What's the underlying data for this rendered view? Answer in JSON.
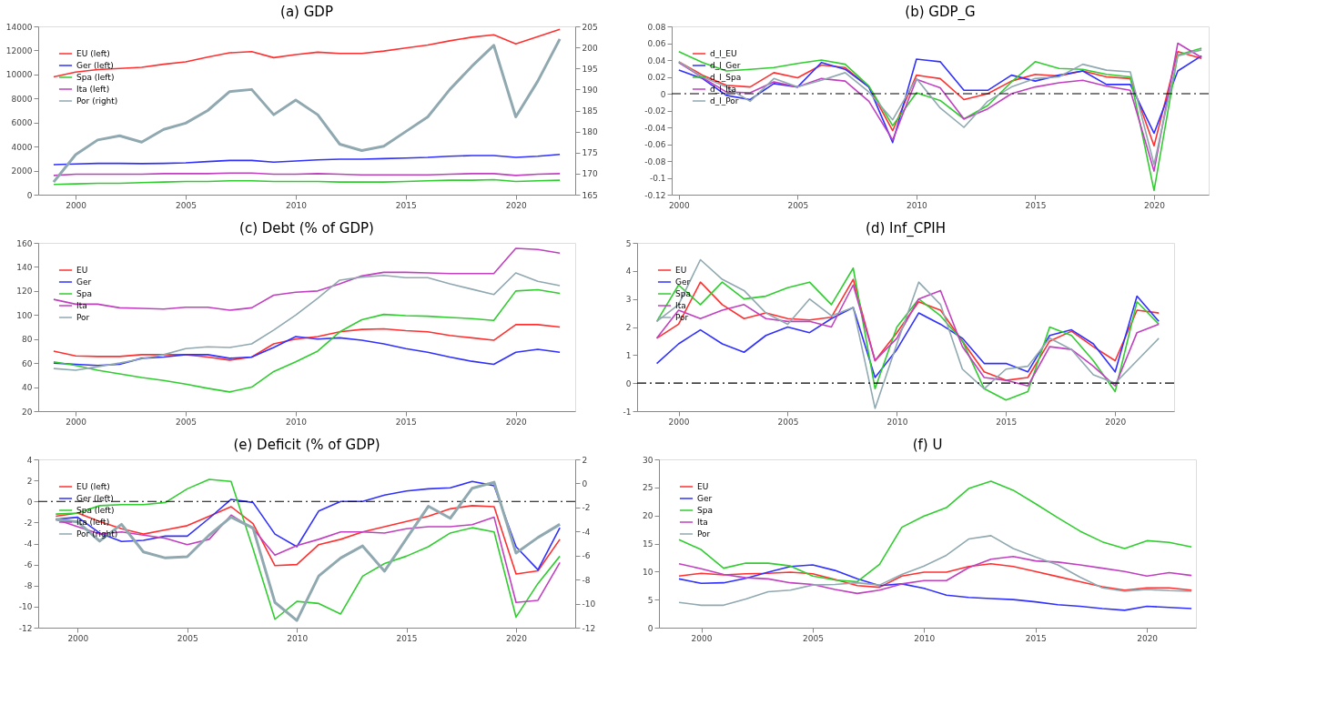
{
  "chart_data": [
    {
      "type": "line",
      "title": "(a) GDP",
      "x": [
        1999,
        2000,
        2001,
        2002,
        2003,
        2004,
        2005,
        2006,
        2007,
        2008,
        2009,
        2010,
        2011,
        2012,
        2013,
        2014,
        2015,
        2016,
        2017,
        2018,
        2019,
        2020,
        2021,
        2022
      ],
      "xlim": [
        1998.3,
        2022.7
      ],
      "xticks": [
        2000,
        2005,
        2010,
        2015,
        2020
      ],
      "ylim": [
        0,
        14000
      ],
      "yticks": [
        0,
        2000,
        4000,
        6000,
        8000,
        10000,
        12000,
        14000
      ],
      "y2lim": [
        165,
        205
      ],
      "y2ticks": [
        165,
        170,
        175,
        180,
        185,
        190,
        195,
        200,
        205
      ],
      "legend": "top left",
      "grid": false,
      "marker": "none",
      "line_style": "solid",
      "series": [
        {
          "name": "EU (left)",
          "color": "#ff3030",
          "values": [
            9800,
            10200,
            10400,
            10500,
            10600,
            10850,
            11050,
            11450,
            11800,
            11900,
            11400,
            11650,
            11850,
            11750,
            11750,
            11950,
            12200,
            12450,
            12800,
            13100,
            13300,
            12550,
            13150,
            13750
          ]
        },
        {
          "name": "Ger (left)",
          "color": "#3030ff",
          "values": [
            2500,
            2550,
            2600,
            2600,
            2580,
            2600,
            2650,
            2750,
            2850,
            2850,
            2700,
            2800,
            2900,
            2950,
            2950,
            3000,
            3050,
            3100,
            3200,
            3250,
            3250,
            3100,
            3200,
            3350
          ]
        },
        {
          "name": "Spa (left)",
          "color": "#30cc30",
          "values": [
            850,
            900,
            950,
            950,
            1000,
            1050,
            1100,
            1100,
            1150,
            1150,
            1100,
            1100,
            1100,
            1050,
            1050,
            1050,
            1100,
            1150,
            1200,
            1200,
            1250,
            1100,
            1150,
            1200
          ]
        },
        {
          "name": "Ita (left)",
          "color": "#c040c0",
          "values": [
            1600,
            1700,
            1700,
            1700,
            1700,
            1750,
            1750,
            1750,
            1800,
            1800,
            1700,
            1700,
            1750,
            1700,
            1650,
            1650,
            1650,
            1650,
            1700,
            1750,
            1750,
            1600,
            1700,
            1750
          ]
        },
        {
          "name": "Por (right)",
          "color": "#90a8b0",
          "axis": "y2",
          "values": [
            168,
            174.5,
            178,
            179,
            177.5,
            180.5,
            182,
            185,
            189.5,
            190,
            184,
            187.5,
            184,
            177,
            175.5,
            176.5,
            180,
            183.5,
            190,
            195.5,
            200.5,
            183.5,
            192,
            202
          ]
        }
      ]
    },
    {
      "type": "line",
      "title": "(b) GDP_G",
      "x": [
        2000,
        2001,
        2002,
        2003,
        2004,
        2005,
        2006,
        2007,
        2008,
        2009,
        2010,
        2011,
        2012,
        2013,
        2014,
        2015,
        2016,
        2017,
        2018,
        2019,
        2020,
        2021,
        2022
      ],
      "xlim": [
        1999.7,
        2022.3
      ],
      "xticks": [
        2000,
        2005,
        2010,
        2015,
        2020
      ],
      "ylim": [
        -0.12,
        0.08
      ],
      "yticks": [
        -0.12,
        -0.1,
        -0.08,
        -0.06,
        -0.04,
        -0.02,
        0,
        0.02,
        0.04,
        0.06,
        0.08
      ],
      "legend": "top left",
      "grid": false,
      "marker": "none",
      "line_style": "solid",
      "ref_lines": [
        {
          "axis": "y",
          "value": 0,
          "color": "#000000",
          "line_style": "dashdot"
        }
      ],
      "series": [
        {
          "name": "d_l_EU",
          "color": "#ff3030",
          "values": [
            0.038,
            0.022,
            0.01,
            0.008,
            0.025,
            0.019,
            0.034,
            0.031,
            0.008,
            -0.044,
            0.022,
            0.018,
            -0.007,
            0,
            0.015,
            0.023,
            0.021,
            0.027,
            0.02,
            0.018,
            -0.062,
            0.05,
            0.042
          ]
        },
        {
          "name": "d_l_Ger",
          "color": "#3030ff",
          "values": [
            0.028,
            0.018,
            -0.002,
            -0.007,
            0.012,
            0.008,
            0.037,
            0.029,
            0.008,
            -0.058,
            0.041,
            0.038,
            0.004,
            0.004,
            0.022,
            0.015,
            0.022,
            0.027,
            0.011,
            0.011,
            -0.047,
            0.027,
            0.045
          ]
        },
        {
          "name": "d_l_Spa",
          "color": "#30cc30",
          "values": [
            0.05,
            0.037,
            0.027,
            0.029,
            0.031,
            0.036,
            0.04,
            0.035,
            0.009,
            -0.038,
            0.001,
            -0.008,
            -0.03,
            -0.014,
            0.014,
            0.038,
            0.03,
            0.029,
            0.023,
            0.02,
            -0.115,
            0.046,
            0.054
          ]
        },
        {
          "name": "d_l_Ita",
          "color": "#c040c0",
          "values": [
            0.037,
            0.019,
            0.002,
            0.001,
            0.014,
            0.008,
            0.018,
            0.015,
            -0.009,
            -0.055,
            0.017,
            0.007,
            -0.03,
            -0.018,
            0,
            0.008,
            0.013,
            0.016,
            0.009,
            0.004,
            -0.092,
            0.06,
            0.043
          ]
        },
        {
          "name": "d_l_Por",
          "color": "#90a8b0",
          "values": [
            0.038,
            0.02,
            0.008,
            -0.009,
            0.018,
            0.008,
            0.016,
            0.025,
            0.002,
            -0.031,
            0.018,
            -0.017,
            -0.04,
            -0.009,
            0.008,
            0.018,
            0.02,
            0.035,
            0.028,
            0.026,
            -0.084,
            0.045,
            0.052
          ]
        }
      ]
    },
    {
      "type": "line",
      "title": "(c) Debt (% of GDP)",
      "x": [
        1999,
        2000,
        2001,
        2002,
        2003,
        2004,
        2005,
        2006,
        2007,
        2008,
        2009,
        2010,
        2011,
        2012,
        2013,
        2014,
        2015,
        2016,
        2017,
        2018,
        2019,
        2020,
        2021,
        2022
      ],
      "xlim": [
        1998.3,
        2022.7
      ],
      "xticks": [
        2000,
        2005,
        2010,
        2015,
        2020
      ],
      "ylim": [
        20,
        160
      ],
      "yticks": [
        20,
        40,
        60,
        80,
        100,
        120,
        140,
        160
      ],
      "legend": "top left",
      "grid": false,
      "marker": "none",
      "line_style": "solid",
      "series": [
        {
          "name": "EU",
          "color": "#ff3030",
          "values": [
            70,
            66,
            65.5,
            65.5,
            67,
            67,
            67,
            65,
            62.5,
            65,
            76,
            80,
            82,
            86,
            88,
            88.5,
            87,
            86,
            83,
            81,
            79,
            92,
            92,
            90
          ]
        },
        {
          "name": "Ger",
          "color": "#3030ff",
          "values": [
            60,
            59,
            58,
            59,
            64,
            65,
            67,
            67,
            64,
            65,
            73,
            82,
            80,
            81,
            79,
            76,
            72,
            69,
            65,
            61.5,
            59,
            69,
            71.5,
            69
          ]
        },
        {
          "name": "Spa",
          "color": "#30cc30",
          "values": [
            61,
            58,
            54,
            51,
            48,
            45.5,
            42.5,
            39,
            36,
            40,
            53,
            61,
            70,
            86,
            96,
            100.5,
            99.5,
            99,
            98,
            97,
            95.5,
            120,
            121,
            118
          ]
        },
        {
          "name": "Ita",
          "color": "#c040c0",
          "values": [
            113,
            109,
            109,
            106,
            105.5,
            105,
            106.5,
            106.5,
            104,
            106,
            116.5,
            119,
            120,
            126,
            132.5,
            135.5,
            135.5,
            135,
            134.5,
            134.5,
            134.5,
            155.5,
            154.5,
            151.5
          ]
        },
        {
          "name": "Por",
          "color": "#90a8b0",
          "values": [
            55.5,
            54,
            57,
            60,
            63.5,
            67,
            72,
            73.5,
            73,
            76,
            87.5,
            100,
            114,
            129,
            131.5,
            133,
            131,
            131,
            126,
            121.5,
            117,
            135,
            128,
            124.5
          ]
        }
      ]
    },
    {
      "type": "line",
      "title": "(d) Inf_CPIH",
      "x": [
        1999,
        2000,
        2001,
        2002,
        2003,
        2004,
        2005,
        2006,
        2007,
        2008,
        2009,
        2010,
        2011,
        2012,
        2013,
        2014,
        2015,
        2016,
        2017,
        2018,
        2019,
        2020,
        2021,
        2022
      ],
      "xlim": [
        1998.1,
        2022.7
      ],
      "xticks": [
        2000,
        2005,
        2010,
        2015,
        2020
      ],
      "ylim": [
        -1,
        5
      ],
      "yticks": [
        -1,
        0,
        1,
        2,
        3,
        4,
        5
      ],
      "legend": "top left",
      "grid": false,
      "marker": "none",
      "line_style": "solid",
      "ref_lines": [
        {
          "axis": "y",
          "value": 0,
          "color": "#000000",
          "line_style": "dashdot"
        }
      ],
      "series": [
        {
          "name": "EU",
          "color": "#ff3030",
          "values": [
            1.6,
            2.1,
            3.6,
            2.8,
            2.3,
            2.5,
            2.3,
            2.25,
            2.35,
            3.7,
            0.8,
            1.8,
            2.9,
            2.6,
            1.5,
            0.4,
            0.1,
            0.2,
            1.5,
            1.85,
            1.3,
            0.8,
            2.6,
            2.5
          ]
        },
        {
          "name": "Ger",
          "color": "#3030ff",
          "values": [
            0.7,
            1.4,
            1.9,
            1.4,
            1.1,
            1.7,
            2.0,
            1.8,
            2.3,
            2.7,
            0.2,
            1.2,
            2.5,
            2.1,
            1.6,
            0.7,
            0.7,
            0.4,
            1.7,
            1.9,
            1.4,
            0.4,
            3.1,
            2.2
          ]
        },
        {
          "name": "Spa",
          "color": "#30cc30",
          "values": [
            2.2,
            3.5,
            2.8,
            3.6,
            3.0,
            3.1,
            3.4,
            3.6,
            2.8,
            4.1,
            -0.2,
            2.0,
            3.0,
            2.4,
            1.5,
            -0.2,
            -0.6,
            -0.3,
            2.0,
            1.7,
            0.8,
            -0.3,
            2.9,
            2.1
          ]
        },
        {
          "name": "Ita",
          "color": "#c040c0",
          "values": [
            1.6,
            2.6,
            2.3,
            2.6,
            2.8,
            2.3,
            2.2,
            2.2,
            2.0,
            3.5,
            0.8,
            1.6,
            3.0,
            3.3,
            1.3,
            0.2,
            0.1,
            -0.1,
            1.3,
            1.2,
            0.6,
            -0.1,
            1.8,
            2.1
          ]
        },
        {
          "name": "Por",
          "color": "#90a8b0",
          "values": [
            2.2,
            2.8,
            4.4,
            3.7,
            3.3,
            2.5,
            2.1,
            3.0,
            2.4,
            2.7,
            -0.9,
            1.4,
            3.6,
            2.8,
            0.5,
            -0.2,
            0.5,
            0.6,
            1.6,
            1.2,
            0.3,
            0.0,
            0.8,
            1.6
          ]
        }
      ]
    },
    {
      "type": "line",
      "title": "(e) Deficit (% of GDP)",
      "x": [
        1999,
        2000,
        2001,
        2002,
        2003,
        2004,
        2005,
        2006,
        2007,
        2008,
        2009,
        2010,
        2011,
        2012,
        2013,
        2014,
        2015,
        2016,
        2017,
        2018,
        2019,
        2020,
        2021,
        2022
      ],
      "xlim": [
        1998.2,
        2022.7
      ],
      "xticks": [
        2000,
        2005,
        2010,
        2015,
        2020
      ],
      "ylim": [
        -12,
        4
      ],
      "yticks": [
        -12,
        -10,
        -8,
        -6,
        -4,
        -2,
        0,
        2,
        4
      ],
      "y2lim": [
        -12,
        2
      ],
      "y2ticks": [
        -12,
        -10,
        -8,
        -6,
        -4,
        -2,
        0,
        2
      ],
      "legend": "top left",
      "grid": false,
      "marker": "none",
      "line_style": "solid",
      "ref_lines": [
        {
          "axis": "y",
          "value": 0,
          "color": "#000000",
          "line_style": "dashdot"
        }
      ],
      "series": [
        {
          "name": "EU (left)",
          "color": "#ff3030",
          "values": [
            -1.4,
            -1.1,
            -1.9,
            -2.6,
            -3.1,
            -2.7,
            -2.3,
            -1.4,
            -0.5,
            -2.1,
            -6.1,
            -6.0,
            -4.1,
            -3.6,
            -2.9,
            -2.4,
            -1.9,
            -1.4,
            -0.7,
            -0.4,
            -0.5,
            -6.9,
            -6.6,
            -3.6
          ]
        },
        {
          "name": "Ger (left)",
          "color": "#3030ff",
          "values": [
            -1.7,
            -1.5,
            -3.0,
            -3.8,
            -3.7,
            -3.3,
            -3.3,
            -1.6,
            0.2,
            -0.1,
            -3.1,
            -4.3,
            -0.9,
            0.0,
            0.0,
            0.6,
            1.0,
            1.2,
            1.3,
            1.9,
            1.5,
            -4.3,
            -6.5,
            -2.5
          ]
        },
        {
          "name": "Spa (left)",
          "color": "#30cc30",
          "values": [
            -1.2,
            -1.1,
            -0.4,
            -0.3,
            -0.3,
            -0.1,
            1.2,
            2.1,
            1.9,
            -4.5,
            -11.2,
            -9.5,
            -9.7,
            -10.7,
            -7.1,
            -5.9,
            -5.2,
            -4.3,
            -3.0,
            -2.5,
            -2.9,
            -11.0,
            -7.8,
            -5.2
          ]
        },
        {
          "name": "Ita (left)",
          "color": "#c040c0",
          "values": [
            -1.7,
            -2.4,
            -3.1,
            -2.9,
            -3.2,
            -3.5,
            -4.1,
            -3.6,
            -1.3,
            -2.6,
            -5.1,
            -4.2,
            -3.6,
            -2.9,
            -2.9,
            -3.0,
            -2.6,
            -2.4,
            -2.4,
            -2.2,
            -1.5,
            -9.6,
            -9.4,
            -5.8
          ]
        },
        {
          "name": "Por (right)",
          "color": "#90a8b0",
          "axis": "y2",
          "values": [
            -3.0,
            -3.2,
            -4.8,
            -3.4,
            -5.7,
            -6.2,
            -6.1,
            -4.3,
            -2.8,
            -3.7,
            -9.9,
            -11.4,
            -7.7,
            -6.2,
            -5.2,
            -7.3,
            -4.6,
            -1.9,
            -2.9,
            -0.4,
            0.1,
            -5.8,
            -4.5,
            -3.4
          ]
        }
      ]
    },
    {
      "type": "line",
      "title": "(f) U",
      "x": [
        1999,
        2000,
        2001,
        2002,
        2003,
        2004,
        2005,
        2006,
        2007,
        2008,
        2009,
        2010,
        2011,
        2012,
        2013,
        2014,
        2015,
        2016,
        2017,
        2018,
        2019,
        2020,
        2021,
        2022
      ],
      "xlim": [
        1998.1,
        2022.2
      ],
      "xticks": [
        2000,
        2005,
        2010,
        2015,
        2020
      ],
      "ylim": [
        0,
        30
      ],
      "yticks": [
        0,
        5,
        10,
        15,
        20,
        25,
        30
      ],
      "legend": "top left",
      "grid": false,
      "marker": "none",
      "line_style": "solid",
      "series": [
        {
          "name": "EU",
          "color": "#ff3030",
          "values": [
            9.2,
            9.7,
            9.4,
            9.6,
            9.7,
            9.9,
            9.6,
            8.6,
            7.5,
            7.2,
            9.2,
            9.9,
            9.9,
            10.9,
            11.4,
            10.9,
            10.0,
            9.1,
            8.2,
            7.3,
            6.7,
            7.1,
            7.1,
            6.7
          ]
        },
        {
          "name": "Ger",
          "color": "#3030ff",
          "values": [
            8.7,
            7.9,
            8.0,
            8.8,
            9.9,
            10.9,
            11.2,
            10.2,
            8.7,
            7.5,
            7.8,
            7.0,
            5.8,
            5.4,
            5.2,
            5.0,
            4.6,
            4.1,
            3.8,
            3.4,
            3.1,
            3.8,
            3.6,
            3.4
          ]
        },
        {
          "name": "Spa",
          "color": "#30cc30",
          "values": [
            15.7,
            13.9,
            10.6,
            11.5,
            11.5,
            11.0,
            9.2,
            8.5,
            8.2,
            11.3,
            17.9,
            19.9,
            21.4,
            24.8,
            26.1,
            24.5,
            22.1,
            19.6,
            17.2,
            15.3,
            14.1,
            15.5,
            15.2,
            14.4
          ]
        },
        {
          "name": "Ita",
          "color": "#c040c0",
          "values": [
            11.4,
            10.5,
            9.5,
            8.9,
            8.7,
            8.0,
            7.7,
            6.8,
            6.1,
            6.7,
            7.8,
            8.4,
            8.4,
            10.7,
            12.2,
            12.7,
            11.9,
            11.7,
            11.2,
            10.6,
            10.0,
            9.2,
            9.8,
            9.3
          ]
        },
        {
          "name": "Por",
          "color": "#90a8b0",
          "values": [
            4.5,
            4.0,
            4.0,
            5.1,
            6.4,
            6.7,
            7.6,
            7.7,
            8.0,
            7.6,
            9.5,
            11.0,
            12.9,
            15.8,
            16.4,
            14.1,
            12.6,
            11.2,
            9.0,
            7.1,
            6.5,
            6.8,
            6.6,
            6.5
          ]
        }
      ]
    }
  ]
}
